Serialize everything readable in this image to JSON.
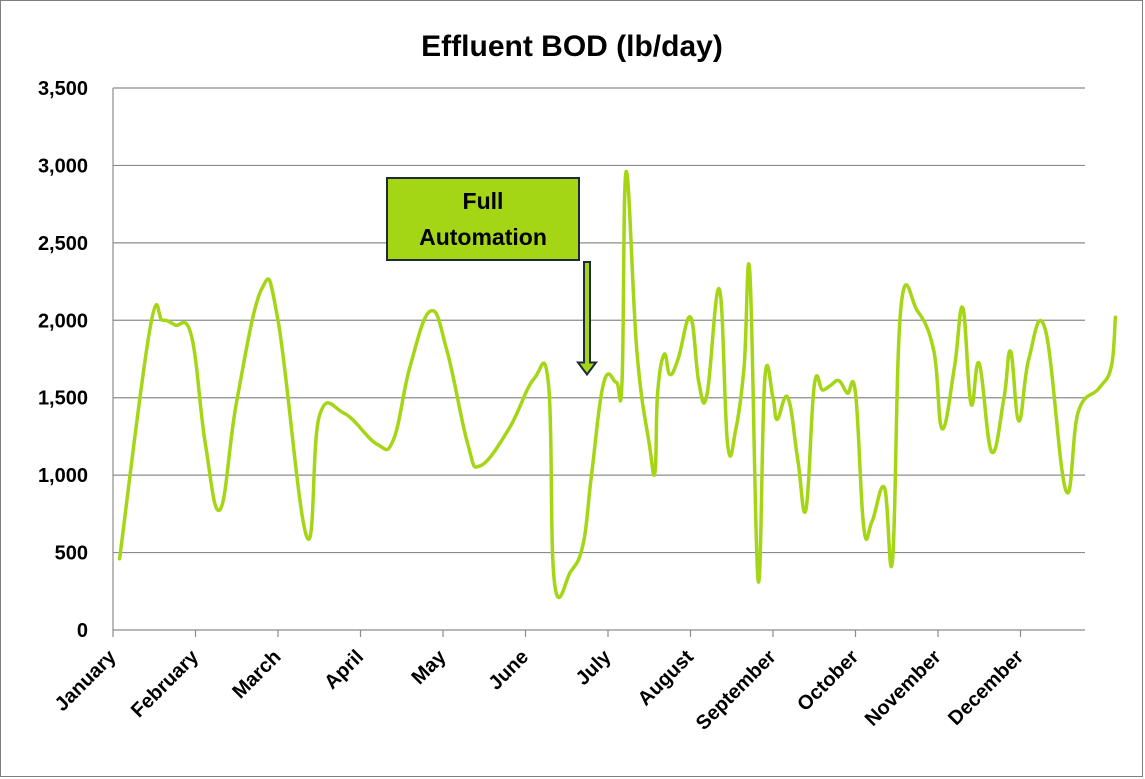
{
  "chart_data": {
    "type": "line",
    "title": "Effluent BOD (lb/day)",
    "xlabel": "",
    "ylabel": "",
    "ylim": [
      0,
      3500
    ],
    "yticks": [
      0,
      500,
      1000,
      1500,
      2000,
      2500,
      3000,
      3500
    ],
    "ytick_labels": [
      "0",
      "500",
      "1,000",
      "1,500",
      "2,000",
      "2,500",
      "3,000",
      "3,500"
    ],
    "categories": [
      "January",
      "February",
      "March",
      "April",
      "May",
      "June",
      "July",
      "August",
      "September",
      "October",
      "November",
      "December"
    ],
    "grid": true,
    "legend": "none",
    "series": [
      {
        "color": "#a5d615",
        "points": [
          [
            0.08,
            460
          ],
          [
            0.45,
            1950
          ],
          [
            0.6,
            2000
          ],
          [
            0.75,
            1970
          ],
          [
            0.95,
            1900
          ],
          [
            1.12,
            1200
          ],
          [
            1.3,
            780
          ],
          [
            1.5,
            1480
          ],
          [
            1.8,
            2200
          ],
          [
            2.0,
            2000
          ],
          [
            2.35,
            600
          ],
          [
            2.5,
            1380
          ],
          [
            2.8,
            1400
          ],
          [
            3.2,
            1200
          ],
          [
            3.4,
            1230
          ],
          [
            3.6,
            1700
          ],
          [
            3.85,
            2060
          ],
          [
            4.05,
            1800
          ],
          [
            4.3,
            1200
          ],
          [
            4.45,
            1060
          ],
          [
            4.8,
            1300
          ],
          [
            5.1,
            1620
          ],
          [
            5.28,
            1580
          ],
          [
            5.35,
            310
          ],
          [
            5.55,
            380
          ],
          [
            5.7,
            560
          ],
          [
            5.8,
            1000
          ],
          [
            5.95,
            1600
          ],
          [
            6.1,
            1600
          ],
          [
            6.17,
            1600
          ],
          [
            6.22,
            2960
          ],
          [
            6.35,
            1800
          ],
          [
            6.5,
            1200
          ],
          [
            6.57,
            1020
          ],
          [
            6.6,
            1520
          ],
          [
            6.68,
            1780
          ],
          [
            6.75,
            1650
          ],
          [
            6.85,
            1750
          ],
          [
            7.0,
            2020
          ],
          [
            7.1,
            1600
          ],
          [
            7.2,
            1520
          ],
          [
            7.35,
            2200
          ],
          [
            7.45,
            1200
          ],
          [
            7.55,
            1300
          ],
          [
            7.65,
            1700
          ],
          [
            7.72,
            2300
          ],
          [
            7.82,
            320
          ],
          [
            7.9,
            1620
          ],
          [
            8.0,
            1500
          ],
          [
            8.05,
            1360
          ],
          [
            8.18,
            1500
          ],
          [
            8.3,
            1100
          ],
          [
            8.4,
            780
          ],
          [
            8.5,
            1580
          ],
          [
            8.6,
            1550
          ],
          [
            8.7,
            1580
          ],
          [
            8.8,
            1610
          ],
          [
            8.9,
            1530
          ],
          [
            9.0,
            1530
          ],
          [
            9.1,
            660
          ],
          [
            9.2,
            700
          ],
          [
            9.35,
            920
          ],
          [
            9.45,
            460
          ],
          [
            9.55,
            2080
          ],
          [
            9.75,
            2060
          ],
          [
            9.95,
            1800
          ],
          [
            10.05,
            1300
          ],
          [
            10.2,
            1700
          ],
          [
            10.3,
            2080
          ],
          [
            10.4,
            1460
          ],
          [
            10.5,
            1720
          ],
          [
            10.65,
            1150
          ],
          [
            10.8,
            1500
          ],
          [
            10.88,
            1800
          ],
          [
            10.98,
            1350
          ],
          [
            11.1,
            1750
          ],
          [
            11.3,
            1940
          ],
          [
            11.55,
            900
          ],
          [
            11.7,
            1410
          ],
          [
            11.95,
            1560
          ],
          [
            12.1,
            1700
          ],
          [
            12.15,
            2020
          ]
        ]
      }
    ],
    "annotations": [
      {
        "text": "Full\nAutomation",
        "x": 5.6,
        "y": 1650
      }
    ]
  },
  "annotation_box": {
    "fill_color": "#a5d615",
    "text": "Full\nAutomation"
  }
}
